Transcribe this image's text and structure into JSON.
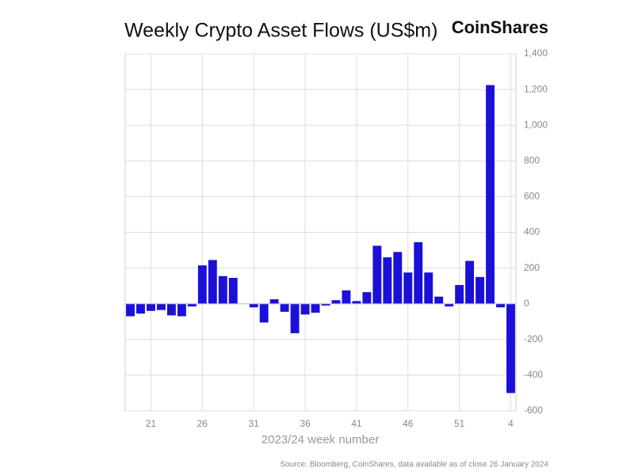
{
  "chart_data": {
    "type": "bar",
    "title": "Weekly Crypto Asset Flows (US$m)",
    "brand": "CoinShares",
    "x_label": "2023/24 week number",
    "source": "Source: Bloomberg, CoinShares, data available as of close 26 January 2024",
    "categories": [
      null,
      null,
      "21",
      null,
      null,
      null,
      null,
      "26",
      null,
      null,
      null,
      null,
      "31",
      null,
      null,
      null,
      null,
      "36",
      null,
      null,
      null,
      null,
      "41",
      null,
      null,
      null,
      null,
      "46",
      null,
      null,
      null,
      null,
      "51",
      null,
      null,
      null,
      null,
      "4"
    ],
    "values": [
      -70,
      -55,
      -40,
      -35,
      -65,
      -70,
      -15,
      215,
      245,
      155,
      145,
      0,
      -20,
      -105,
      25,
      -45,
      -165,
      -60,
      -50,
      -10,
      20,
      75,
      15,
      65,
      325,
      260,
      290,
      175,
      345,
      175,
      40,
      -15,
      105,
      240,
      150,
      1225,
      -20,
      -500
    ],
    "color": "#1a10d8",
    "ylim": [
      -600,
      1400
    ],
    "yticks": [
      -600,
      -400,
      -200,
      0,
      200,
      400,
      600,
      800,
      {
        "value": 1000,
        "label": "1,000"
      },
      {
        "value": 1200,
        "label": "1,200"
      },
      {
        "value": 1400,
        "label": "1,400"
      }
    ],
    "grid": true
  }
}
